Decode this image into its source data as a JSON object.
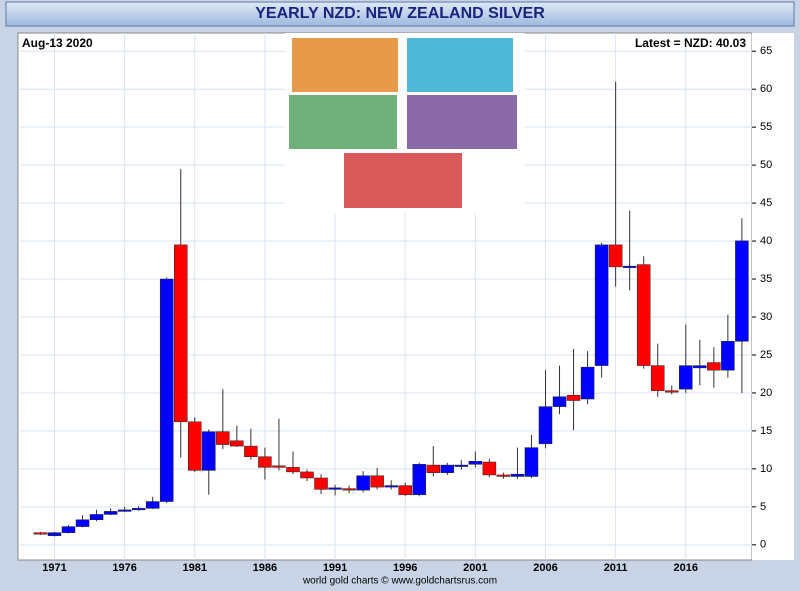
{
  "chart_data": {
    "type": "candlestick",
    "title": "YEARLY NZD: NEW ZEALAND SILVER",
    "date_label": "Aug-13  2020",
    "latest_label": "Latest = NZD: 40.03",
    "footer": "world gold charts © www.goldchartsrus.com",
    "x": [
      1970,
      1971,
      1972,
      1973,
      1974,
      1975,
      1976,
      1977,
      1978,
      1979,
      1980,
      1981,
      1982,
      1983,
      1984,
      1985,
      1986,
      1987,
      1988,
      1989,
      1990,
      1991,
      1992,
      1993,
      1994,
      1995,
      1996,
      1997,
      1998,
      1999,
      2000,
      2001,
      2002,
      2003,
      2004,
      2005,
      2006,
      2007,
      2008,
      2009,
      2010,
      2011,
      2012,
      2013,
      2014,
      2015,
      2016,
      2017,
      2018,
      2019,
      2020
    ],
    "open": [
      1.6,
      1.2,
      1.6,
      2.4,
      3.3,
      4.0,
      4.4,
      4.6,
      4.8,
      5.7,
      39.5,
      16.2,
      9.8,
      14.9,
      13.7,
      13.0,
      11.6,
      10.4,
      10.2,
      9.6,
      8.8,
      7.3,
      7.4,
      7.2,
      9.1,
      7.6,
      7.8,
      6.6,
      10.5,
      9.5,
      10.4,
      10.6,
      10.9,
      9.2,
      9.0,
      9.0,
      13.3,
      18.2,
      19.7,
      19.2,
      23.6,
      39.5,
      36.5,
      36.9,
      23.6,
      20.3,
      20.5,
      23.3,
      24.0,
      23.0,
      26.8
    ],
    "high": [
      1.7,
      1.7,
      2.6,
      3.9,
      4.6,
      4.8,
      5.0,
      5.1,
      6.3,
      35.2,
      49.5,
      16.8,
      15.2,
      20.5,
      15.7,
      15.3,
      12.8,
      16.6,
      12.3,
      9.9,
      9.3,
      7.9,
      7.8,
      9.7,
      10.1,
      8.5,
      8.2,
      10.8,
      13.0,
      10.8,
      11.2,
      12.3,
      11.3,
      9.5,
      12.8,
      14.5,
      23.0,
      23.6,
      25.8,
      25.5,
      39.8,
      61.0,
      44.0,
      38.0,
      26.5,
      21.0,
      29.0,
      27.0,
      26.0,
      30.3,
      43.0
    ],
    "low": [
      1.3,
      1.1,
      1.5,
      2.3,
      3.1,
      3.9,
      4.3,
      4.5,
      4.7,
      5.5,
      11.5,
      9.6,
      6.6,
      12.6,
      12.9,
      11.2,
      8.6,
      9.8,
      9.3,
      8.4,
      6.7,
      6.5,
      6.8,
      6.9,
      7.3,
      7.3,
      6.4,
      6.4,
      9.0,
      9.2,
      9.9,
      10.2,
      8.9,
      8.7,
      8.7,
      8.8,
      12.7,
      17.2,
      15.1,
      18.5,
      22.0,
      34.0,
      33.5,
      23.2,
      19.5,
      19.8,
      20.0,
      21.0,
      20.7,
      22.0,
      20.0
    ],
    "close": [
      1.4,
      1.6,
      2.4,
      3.3,
      4.0,
      4.4,
      4.6,
      4.8,
      5.7,
      35.0,
      16.2,
      9.8,
      14.9,
      13.2,
      13.0,
      11.6,
      10.2,
      10.2,
      9.6,
      8.8,
      7.3,
      7.5,
      7.2,
      9.1,
      7.6,
      7.8,
      6.6,
      10.6,
      9.5,
      10.5,
      10.5,
      11.0,
      9.2,
      9.1,
      9.3,
      12.8,
      18.2,
      19.5,
      19.0,
      23.4,
      39.5,
      36.6,
      36.7,
      23.6,
      20.3,
      20.2,
      23.6,
      23.6,
      23.0,
      26.8,
      40.03
    ],
    "up_color": "#0000ff",
    "down_color": "#ff0000",
    "xlim": [
      1968.4,
      2020.72
    ],
    "xticks": [
      1971,
      1976,
      1981,
      1986,
      1991,
      1996,
      2001,
      2006,
      2011,
      2016
    ],
    "ylim": [
      -2,
      67.4
    ],
    "yticks": [
      0,
      5,
      10,
      15,
      20,
      25,
      30,
      35,
      40,
      45,
      50,
      55,
      60,
      65
    ],
    "grid": true
  }
}
